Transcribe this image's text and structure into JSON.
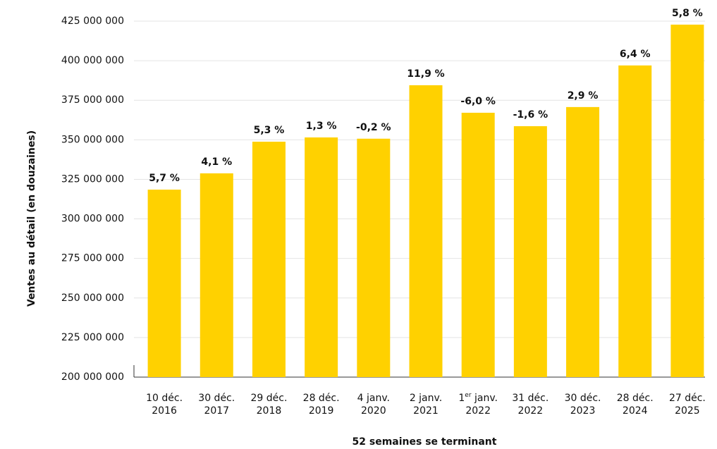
{
  "chart_data": {
    "type": "bar",
    "y_label": "Ventes au détail (en douzaines)",
    "x_label": "52 semaines se terminant",
    "categories": [
      [
        "10 déc.",
        "2016"
      ],
      [
        "30 déc.",
        "2017"
      ],
      [
        "29 déc.",
        "2018"
      ],
      [
        "28 déc.",
        "2019"
      ],
      [
        "4 janv.",
        "2020"
      ],
      [
        "2 janv.",
        "2021"
      ],
      [
        [
          "1",
          "er",
          " janv."
        ],
        "2022"
      ],
      [
        "31 déc.",
        "2022"
      ],
      [
        "30 déc.",
        "2023"
      ],
      [
        "28 déc.",
        "2024"
      ],
      [
        "27 déc.",
        "2025"
      ]
    ],
    "values": [
      318500000,
      328800000,
      348800000,
      351500000,
      350700000,
      384500000,
      367100000,
      358600000,
      370700000,
      397000000,
      422800000
    ],
    "growth": [
      5.7,
      4.1,
      5.3,
      1.3,
      -0.2,
      11.9,
      -6.0,
      -1.6,
      2.9,
      6.4,
      5.8
    ],
    "growth_labels": [
      "5,7 %",
      "4,1 %",
      "5,3 %",
      "1,3 %",
      "-0,2 %",
      "11,9 %",
      "-6,0 %",
      "-1,6 %",
      "2,9 %",
      "6,4 %",
      "5,8 %"
    ],
    "color": "#ffd100",
    "ylim": [
      200000000,
      425000000
    ],
    "yticks": [
      {
        "value": 200000000,
        "label": "200 000 000"
      },
      {
        "value": 225000000,
        "label": "225 000 000"
      },
      {
        "value": 250000000,
        "label": "250 000 000"
      },
      {
        "value": 275000000,
        "label": "275 000 000"
      },
      {
        "value": 300000000,
        "label": "300 000 000"
      },
      {
        "value": 325000000,
        "label": "325 000 000"
      },
      {
        "value": 350000000,
        "label": "350 000 000"
      },
      {
        "value": 375000000,
        "label": "375 000 000"
      },
      {
        "value": 400000000,
        "label": "400 000 000"
      },
      {
        "value": 425000000,
        "label": "425 000 000"
      }
    ],
    "grid": true
  }
}
